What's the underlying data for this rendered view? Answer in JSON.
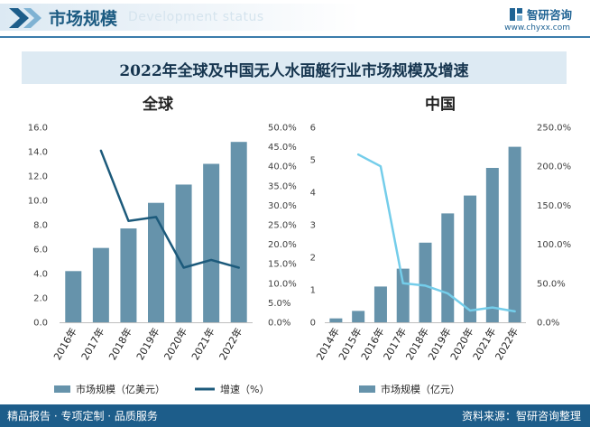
{
  "header": {
    "title": "市场规模",
    "subtitle": "Development status",
    "brand": "智研咨询",
    "url": "www.chyxx.com"
  },
  "main_title": "2022年全球及中国无人水面艇行业市场规模及增速",
  "footer": {
    "left": "精品报告 · 专项定制 · 品质服务",
    "right": "资料来源：智研咨询整理"
  },
  "colors": {
    "bar": "#6693ab",
    "global_line": "#1c5a7b",
    "china_line": "#74cdea",
    "primary": "#1d5d8a"
  },
  "chart_data": [
    {
      "type": "bar+line",
      "title": "全球",
      "categories": [
        "2016年",
        "2017年",
        "2018年",
        "2019年",
        "2020年",
        "2021年",
        "2022年"
      ],
      "series": [
        {
          "name": "市场规模（亿美元）",
          "type": "bar",
          "axis": "left",
          "values": [
            4.2,
            6.1,
            7.7,
            9.8,
            11.3,
            13.0,
            14.8
          ]
        },
        {
          "name": "增速（%）",
          "type": "line",
          "axis": "right",
          "values": [
            null,
            44.0,
            26.0,
            27.0,
            14.0,
            16.0,
            14.0
          ]
        }
      ],
      "ylim_left": [
        0,
        16
      ],
      "yticks_left": [
        "0.0",
        "2.0",
        "4.0",
        "6.0",
        "8.0",
        "10.0",
        "12.0",
        "14.0",
        "16.0"
      ],
      "ylim_right": [
        0,
        50
      ],
      "yticks_right": [
        "0.0%",
        "5.0%",
        "10.0%",
        "15.0%",
        "20.0%",
        "25.0%",
        "30.0%",
        "35.0%",
        "40.0%",
        "45.0%",
        "50.0%"
      ],
      "legend": [
        "市场规模（亿美元）",
        "增速（%）"
      ]
    },
    {
      "type": "bar+line",
      "title": "中国",
      "categories": [
        "2014年",
        "2015年",
        "2016年",
        "2017年",
        "2018年",
        "2019年",
        "2020年",
        "2021年",
        "2022年"
      ],
      "series": [
        {
          "name": "市场规模（亿元）",
          "type": "bar",
          "axis": "left",
          "values": [
            0.12,
            0.35,
            1.1,
            1.65,
            2.45,
            3.35,
            3.9,
            4.75,
            5.4
          ]
        },
        {
          "name": "增速",
          "type": "line",
          "axis": "right",
          "values": [
            null,
            215.0,
            200.0,
            50.0,
            47.0,
            37.0,
            15.0,
            19.0,
            14.0
          ]
        }
      ],
      "ylim_left": [
        0,
        6
      ],
      "yticks_left": [
        "0",
        "1",
        "2",
        "3",
        "4",
        "5",
        "6"
      ],
      "ylim_right": [
        0,
        250
      ],
      "yticks_right": [
        "0.0%",
        "50.0%",
        "100.0%",
        "150.0%",
        "200.0%",
        "250.0%"
      ],
      "legend": [
        "市场规模（亿元）"
      ]
    }
  ]
}
